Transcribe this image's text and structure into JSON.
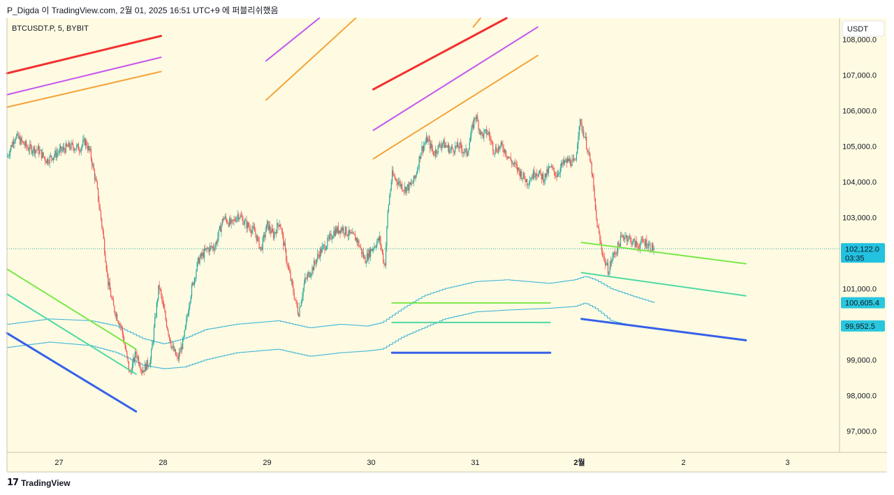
{
  "attribution": "P_Digda 이 TradingView.com, 2월 01, 2025 16:51 UTC+9 에 퍼블리쉬했음",
  "footer": {
    "brand": "TradingView"
  },
  "colors": {
    "background": "#fefbe2",
    "up": "#26a69a",
    "down": "#ef5350",
    "envelope": "#3bb3d8",
    "red_line": "#f23030",
    "purple_line": "#c455f0",
    "orange_line": "#f5a33a",
    "green_line": "#7ce84a",
    "teal_line": "#4fd8a4",
    "blue_line": "#3560e8",
    "price_badge": "#22c2e0",
    "level_badge": "#29c7dd"
  },
  "chart_data": {
    "type": "candlestick",
    "symbol": "BTCUSDT.P, 5, BYBIT",
    "currency": "USDT",
    "ylim": [
      96400,
      108600
    ],
    "y_ticks": [
      97000,
      98000,
      99000,
      101000,
      103000,
      104000,
      105000,
      106000,
      107000,
      108000
    ],
    "y_tick_labels": [
      "97,000.0",
      "98,000.0",
      "99,000.0",
      "101,000.0",
      "103,000.0",
      "104,000.0",
      "105,000.0",
      "106,000.0",
      "107,000.0",
      "108,000.0"
    ],
    "xlim": [
      0,
      8.0
    ],
    "x_ticks": [
      {
        "x": 0.5,
        "label": "27"
      },
      {
        "x": 1.5,
        "label": "28"
      },
      {
        "x": 2.5,
        "label": "29"
      },
      {
        "x": 3.5,
        "label": "30"
      },
      {
        "x": 4.5,
        "label": "31"
      },
      {
        "x": 5.5,
        "label": "2월",
        "bold": true
      },
      {
        "x": 6.5,
        "label": "2"
      },
      {
        "x": 7.5,
        "label": "3"
      }
    ],
    "price_path": [
      [
        0.0,
        104700
      ],
      [
        0.08,
        105300
      ],
      [
        0.2,
        104950
      ],
      [
        0.3,
        104900
      ],
      [
        0.38,
        104600
      ],
      [
        0.5,
        104850
      ],
      [
        0.6,
        105000
      ],
      [
        0.7,
        104950
      ],
      [
        0.75,
        105150
      ],
      [
        0.8,
        104800
      ],
      [
        0.86,
        103900
      ],
      [
        0.92,
        102600
      ],
      [
        0.97,
        101200
      ],
      [
        1.02,
        100500
      ],
      [
        1.1,
        99900
      ],
      [
        1.18,
        98600
      ],
      [
        1.24,
        99200
      ],
      [
        1.3,
        98700
      ],
      [
        1.38,
        99000
      ],
      [
        1.46,
        101100
      ],
      [
        1.52,
        100200
      ],
      [
        1.58,
        99400
      ],
      [
        1.64,
        99000
      ],
      [
        1.7,
        99600
      ],
      [
        1.76,
        100800
      ],
      [
        1.84,
        101800
      ],
      [
        1.92,
        102100
      ],
      [
        2.0,
        102200
      ],
      [
        2.08,
        103000
      ],
      [
        2.16,
        102800
      ],
      [
        2.22,
        103100
      ],
      [
        2.3,
        102800
      ],
      [
        2.38,
        102600
      ],
      [
        2.44,
        102100
      ],
      [
        2.5,
        102800
      ],
      [
        2.56,
        102500
      ],
      [
        2.62,
        102900
      ],
      [
        2.7,
        101600
      ],
      [
        2.76,
        100800
      ],
      [
        2.8,
        100300
      ],
      [
        2.86,
        101200
      ],
      [
        2.94,
        101600
      ],
      [
        3.0,
        102000
      ],
      [
        3.08,
        102300
      ],
      [
        3.14,
        102600
      ],
      [
        3.22,
        102700
      ],
      [
        3.3,
        102500
      ],
      [
        3.36,
        102400
      ],
      [
        3.44,
        101800
      ],
      [
        3.5,
        102100
      ],
      [
        3.58,
        102400
      ],
      [
        3.63,
        101600
      ],
      [
        3.66,
        103200
      ],
      [
        3.7,
        104200
      ],
      [
        3.76,
        104000
      ],
      [
        3.82,
        103800
      ],
      [
        3.88,
        103900
      ],
      [
        3.92,
        104100
      ],
      [
        3.98,
        104900
      ],
      [
        4.04,
        105200
      ],
      [
        4.1,
        104800
      ],
      [
        4.18,
        105100
      ],
      [
        4.26,
        104900
      ],
      [
        4.34,
        105000
      ],
      [
        4.42,
        104800
      ],
      [
        4.5,
        105900
      ],
      [
        4.56,
        105300
      ],
      [
        4.62,
        105400
      ],
      [
        4.68,
        104900
      ],
      [
        4.76,
        105000
      ],
      [
        4.84,
        104600
      ],
      [
        4.92,
        104300
      ],
      [
        5.0,
        104000
      ],
      [
        5.08,
        104300
      ],
      [
        5.16,
        104100
      ],
      [
        5.22,
        104400
      ],
      [
        5.28,
        104200
      ],
      [
        5.34,
        104500
      ],
      [
        5.4,
        104600
      ],
      [
        5.46,
        104500
      ],
      [
        5.5,
        105700
      ],
      [
        5.54,
        105400
      ],
      [
        5.58,
        104900
      ],
      [
        5.62,
        104300
      ],
      [
        5.66,
        103000
      ],
      [
        5.7,
        102300
      ],
      [
        5.74,
        101800
      ],
      [
        5.78,
        101500
      ],
      [
        5.82,
        101900
      ],
      [
        5.86,
        102100
      ],
      [
        5.9,
        102400
      ],
      [
        5.94,
        102500
      ],
      [
        5.98,
        102400
      ],
      [
        6.02,
        102300
      ],
      [
        6.06,
        102200
      ],
      [
        6.1,
        102300
      ],
      [
        6.14,
        102300
      ],
      [
        6.18,
        102180
      ],
      [
        6.22,
        102122
      ]
    ],
    "envelope_upper": [
      [
        0.0,
        100000
      ],
      [
        0.4,
        100150
      ],
      [
        0.8,
        100100
      ],
      [
        1.05,
        99950
      ],
      [
        1.3,
        99600
      ],
      [
        1.5,
        99450
      ],
      [
        1.7,
        99600
      ],
      [
        1.9,
        99850
      ],
      [
        2.2,
        100000
      ],
      [
        2.6,
        100100
      ],
      [
        2.9,
        99900
      ],
      [
        3.2,
        100000
      ],
      [
        3.45,
        99950
      ],
      [
        3.6,
        100050
      ],
      [
        3.8,
        100450
      ],
      [
        4.0,
        100800
      ],
      [
        4.2,
        101000
      ],
      [
        4.5,
        101200
      ],
      [
        4.8,
        101250
      ],
      [
        5.2,
        101150
      ],
      [
        5.45,
        101250
      ],
      [
        5.55,
        101350
      ],
      [
        5.65,
        101250
      ],
      [
        5.8,
        101000
      ],
      [
        6.0,
        100800
      ],
      [
        6.22,
        100600
      ]
    ],
    "envelope_lower": [
      [
        0.0,
        99350
      ],
      [
        0.4,
        99500
      ],
      [
        0.8,
        99400
      ],
      [
        1.05,
        99200
      ],
      [
        1.3,
        98850
      ],
      [
        1.5,
        98750
      ],
      [
        1.7,
        98800
      ],
      [
        1.9,
        99000
      ],
      [
        2.2,
        99200
      ],
      [
        2.6,
        99300
      ],
      [
        2.9,
        99100
      ],
      [
        3.2,
        99200
      ],
      [
        3.45,
        99250
      ],
      [
        3.6,
        99300
      ],
      [
        3.8,
        99650
      ],
      [
        4.0,
        99900
      ],
      [
        4.2,
        100150
      ],
      [
        4.5,
        100350
      ],
      [
        4.8,
        100400
      ],
      [
        5.2,
        100450
      ],
      [
        5.45,
        100500
      ],
      [
        5.55,
        100600
      ],
      [
        5.65,
        100450
      ],
      [
        5.8,
        100100
      ],
      [
        6.0,
        99950
      ],
      [
        6.22,
        99900
      ]
    ],
    "trend_lines": [
      {
        "color": "#f23030",
        "x1": 0.0,
        "y1": 107050,
        "x2": 1.48,
        "y2": 108100
      },
      {
        "color": "#c455f0",
        "x1": 0.0,
        "y1": 106450,
        "x2": 1.48,
        "y2": 107500
      },
      {
        "color": "#f5a33a",
        "x1": 0.0,
        "y1": 106100,
        "x2": 1.48,
        "y2": 107100
      },
      {
        "color": "#c455f0",
        "x1": 2.49,
        "y1": 107400,
        "x2": 3.0,
        "y2": 108600
      },
      {
        "color": "#f5a33a",
        "x1": 2.49,
        "y1": 106300,
        "x2": 3.35,
        "y2": 108600
      },
      {
        "color": "#f5a33a",
        "x1": 4.48,
        "y1": 108350,
        "x2": 4.55,
        "y2": 108600
      },
      {
        "color": "#f23030",
        "x1": 3.52,
        "y1": 106600,
        "x2": 4.8,
        "y2": 108600
      },
      {
        "color": "#c455f0",
        "x1": 3.52,
        "y1": 105450,
        "x2": 5.1,
        "y2": 108350
      },
      {
        "color": "#f5a33a",
        "x1": 3.52,
        "y1": 104650,
        "x2": 5.1,
        "y2": 107550
      },
      {
        "color": "#7ce84a",
        "x1": 0.0,
        "y1": 101550,
        "x2": 1.24,
        "y2": 99300
      },
      {
        "color": "#4fd8a4",
        "x1": 0.0,
        "y1": 100850,
        "x2": 1.24,
        "y2": 98600
      },
      {
        "color": "#3560e8",
        "x1": 0.0,
        "y1": 99750,
        "x2": 1.24,
        "y2": 97550
      },
      {
        "color": "#7ce84a",
        "x1": 3.7,
        "y1": 100600,
        "x2": 5.22,
        "y2": 100600
      },
      {
        "color": "#4fd8a4",
        "x1": 3.7,
        "y1": 100050,
        "x2": 5.22,
        "y2": 100050
      },
      {
        "color": "#3560e8",
        "x1": 3.7,
        "y1": 99200,
        "x2": 5.22,
        "y2": 99200
      },
      {
        "color": "#7ce84a",
        "x1": 5.52,
        "y1": 102300,
        "x2": 7.1,
        "y2": 101700
      },
      {
        "color": "#4fd8a4",
        "x1": 5.52,
        "y1": 101450,
        "x2": 7.1,
        "y2": 100800
      },
      {
        "color": "#3560e8",
        "x1": 5.52,
        "y1": 100150,
        "x2": 7.1,
        "y2": 99550
      }
    ],
    "current_price": {
      "value": 102122.0,
      "label": "102,122.0",
      "countdown": "03:35"
    },
    "level_badges": [
      {
        "value": 100605.4,
        "label": "100,605.4"
      },
      {
        "value": 99952.5,
        "label": "99,952.5"
      }
    ]
  }
}
